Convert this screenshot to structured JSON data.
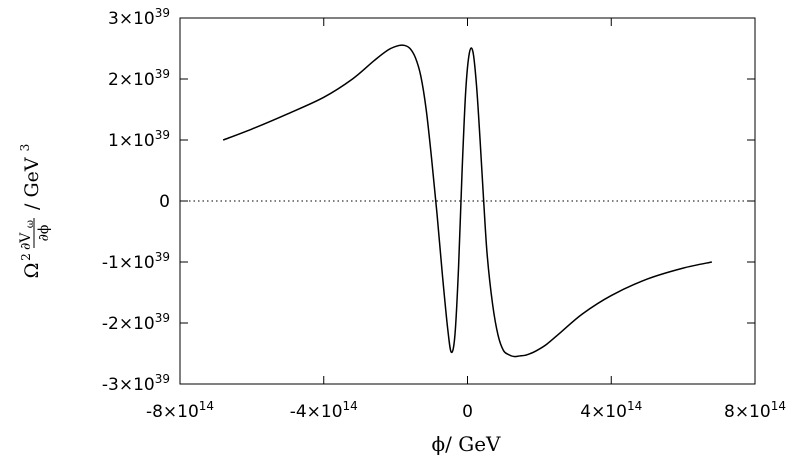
{
  "chart_data": {
    "type": "line",
    "xlabel": "ϕ/ GeV",
    "ylabel": {
      "omega": "Ω",
      "power": "2",
      "numerator": "∂V",
      "numerator_sub": "ω",
      "denominator": "∂ϕ",
      "unit": "/ GeV",
      "unit_power": "3"
    },
    "xlim": [
      -800000000000000.0,
      800000000000000.0
    ],
    "ylim": [
      -3e+39,
      3e+39
    ],
    "x_ticks": [
      {
        "value": -800000000000000.0,
        "mantissa": "-8×10",
        "exp": "14"
      },
      {
        "value": -400000000000000.0,
        "mantissa": "-4×10",
        "exp": "14"
      },
      {
        "value": 0,
        "mantissa": "0",
        "exp": ""
      },
      {
        "value": 400000000000000.0,
        "mantissa": "4×10",
        "exp": "14"
      },
      {
        "value": 800000000000000.0,
        "mantissa": "8×10",
        "exp": "14"
      }
    ],
    "y_ticks": [
      {
        "value": 3e+39,
        "mantissa": "3×10",
        "exp": "39"
      },
      {
        "value": 2e+39,
        "mantissa": "2×10",
        "exp": "39"
      },
      {
        "value": 1e+39,
        "mantissa": "1×10",
        "exp": "39"
      },
      {
        "value": 0,
        "mantissa": "0",
        "exp": ""
      },
      {
        "value": -1e+39,
        "mantissa": "-1×10",
        "exp": "39"
      },
      {
        "value": -2e+39,
        "mantissa": "-2×10",
        "exp": "39"
      },
      {
        "value": -3e+39,
        "mantissa": "-3×10",
        "exp": "39"
      }
    ],
    "reference_line": {
      "y": 0,
      "style": "dotted"
    },
    "grid": false,
    "series": [
      {
        "x": [
          -680000000000000.0,
          -600000000000000.0,
          -500000000000000.0,
          -400000000000000.0,
          -320000000000000.0,
          -260000000000000.0,
          -220000000000000.0,
          -190000000000000.0,
          -175000000000000.0,
          -160000000000000.0,
          -145000000000000.0,
          -130000000000000.0,
          -115000000000000.0,
          -100000000000000.0,
          -85000000000000.0,
          -70000000000000.0,
          -55000000000000.0,
          -45000000000000.0,
          -35000000000000.0,
          -25000000000000.0,
          -15000000000000.0,
          -5000000000000.0,
          5000000000000.0,
          15000000000000.0,
          25000000000000.0,
          35000000000000.0,
          45000000000000.0,
          55000000000000.0,
          70000000000000.0,
          85000000000000.0,
          100000000000000.0,
          115000000000000.0,
          130000000000000.0,
          145000000000000.0,
          160000000000000.0,
          175000000000000.0,
          190000000000000.0,
          220000000000000.0,
          260000000000000.0,
          320000000000000.0,
          400000000000000.0,
          500000000000000.0,
          600000000000000.0,
          680000000000000.0
        ],
        "y": [
          1e+39,
          1.18e+39,
          1.43e+39,
          1.7e+39,
          2e+39,
          2.3e+39,
          2.48e+39,
          2.55e+39,
          2.55e+39,
          2.5e+39,
          2.35e+39,
          2.05e+39,
          1.5e+39,
          7e+38,
          -2e+38,
          -1.2e+39,
          -2.1e+39,
          -2.48e+39,
          -2.2e+39,
          -1.1e+39,
          5e+38,
          1.8e+39,
          2.42e+39,
          2.45e+39,
          1.9e+39,
          1e+39,
          0.0,
          -9e+38,
          -1.7e+39,
          -2.2e+39,
          -2.45e+39,
          -2.52e+39,
          -2.55e+39,
          -2.54e+39,
          -2.53e+39,
          -2.5e+39,
          -2.46e+39,
          -2.35e+39,
          -2.15e+39,
          -1.85e+39,
          -1.55e+39,
          -1.28e+39,
          -1.1e+39,
          -1e+39
        ]
      }
    ]
  }
}
